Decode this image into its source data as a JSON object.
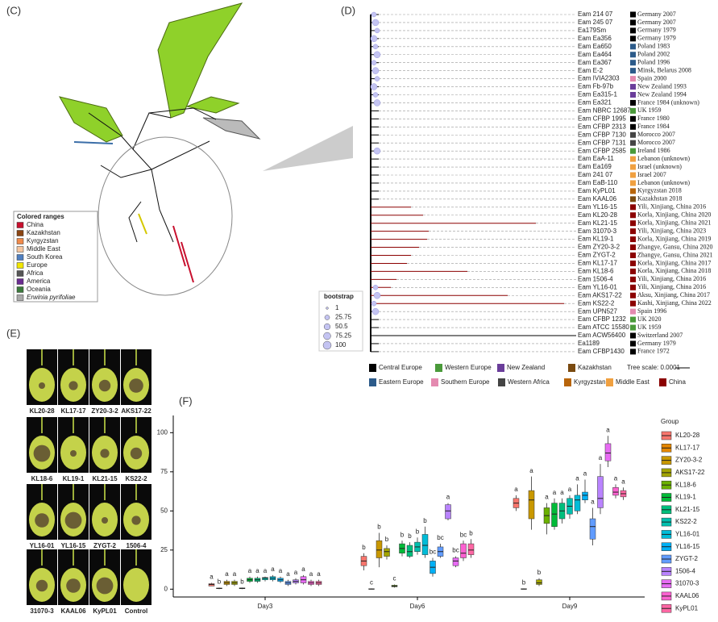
{
  "panels": {
    "c": "(C)",
    "d": "(D)",
    "e": "(E)",
    "f": "(F)"
  },
  "tree_c_legend": {
    "title": "Colored ranges",
    "items": [
      {
        "label": "China",
        "color": "#c8102e"
      },
      {
        "label": "Kazakhstan",
        "color": "#8b4513"
      },
      {
        "label": "Kyrgyzstan",
        "color": "#f08a4b"
      },
      {
        "label": "Middle East",
        "color": "#f5c6a0"
      },
      {
        "label": "South Korea",
        "color": "#4f7fc0"
      },
      {
        "label": "Europe",
        "color": "#f2e600"
      },
      {
        "label": "Africa",
        "color": "#555555"
      },
      {
        "label": "America",
        "color": "#6a2c91"
      },
      {
        "label": "Oceania",
        "color": "#3c7a3c"
      },
      {
        "label": "Erwinia pyrifoliae",
        "color": "#aaaaaa"
      }
    ]
  },
  "tree_d": {
    "taxa": [
      {
        "name": "Eam 214 07",
        "origin": "Germany 2007",
        "color": "#000000"
      },
      {
        "name": "Eam 245 07",
        "origin": "Germany 2007",
        "color": "#000000"
      },
      {
        "name": "Ea179Sm",
        "origin": "Germany 1979",
        "color": "#000000"
      },
      {
        "name": "Eam Ea356",
        "origin": "Germany 1979",
        "color": "#000000"
      },
      {
        "name": "Eam Ea650",
        "origin": "Poland 1983",
        "color": "#2c5b8a"
      },
      {
        "name": "Eam Ea464",
        "origin": "Poland 2002",
        "color": "#2c5b8a"
      },
      {
        "name": "Eam Ea367",
        "origin": "Poland 1996",
        "color": "#2c5b8a"
      },
      {
        "name": "Eam E-2",
        "origin": "Minsk, Belarus 2008",
        "color": "#2c5b8a"
      },
      {
        "name": "Eam IVIA2303",
        "origin": "Spain 2000",
        "color": "#e48ab0"
      },
      {
        "name": "Eam Fb-97b",
        "origin": "New Zealand 1993",
        "color": "#6a3d9a"
      },
      {
        "name": "Eam Ea315-1",
        "origin": "New Zealand 1994",
        "color": "#6a3d9a"
      },
      {
        "name": "Eam Ea321",
        "origin": "France 1984 (unknown)",
        "color": "#000000"
      },
      {
        "name": "Eam NBRC 12687",
        "origin": "UK 1959",
        "color": "#4a9a3a"
      },
      {
        "name": "Eam CFBP 1995",
        "origin": "France 1980",
        "color": "#000000"
      },
      {
        "name": "Eam CFBP 2313",
        "origin": "France 1984",
        "color": "#000000"
      },
      {
        "name": "Eam CFBP 7130",
        "origin": "Morocco 2007",
        "color": "#444444"
      },
      {
        "name": "Eam CFBP 7131",
        "origin": "Morocco 2007",
        "color": "#444444"
      },
      {
        "name": "Eam CFBP 2585",
        "origin": "Ireland 1986",
        "color": "#4a9a3a"
      },
      {
        "name": "Eam EaA-11",
        "origin": "Lebanon (unknown)",
        "color": "#f0a040"
      },
      {
        "name": "Eam Ea169",
        "origin": "Israel (unknown)",
        "color": "#f0a040"
      },
      {
        "name": "Eam 241 07",
        "origin": "Israel 2007",
        "color": "#f0a040"
      },
      {
        "name": "Eam EaB-110",
        "origin": "Lebanon (unknown)",
        "color": "#f0a040"
      },
      {
        "name": "Eam KyPL01",
        "origin": "Kyrgyzstan 2018",
        "color": "#b8650a"
      },
      {
        "name": "Eam KAAL06",
        "origin": "Kazakhstan 2018",
        "color": "#7a4a10"
      },
      {
        "name": "Eam YL16-15",
        "origin": "Yili, Xinjiang, China 2016",
        "color": "#8b0000"
      },
      {
        "name": "Eam KL20-28",
        "origin": "Korla, Xinjiang, China 2020",
        "color": "#8b0000"
      },
      {
        "name": "Eam KL21-15",
        "origin": "Korla, Xinjiang, China 2021",
        "color": "#8b0000"
      },
      {
        "name": "Eam 31070-3",
        "origin": "Yili, Xinjiang, China 2023",
        "color": "#8b0000"
      },
      {
        "name": "Eam KL19-1",
        "origin": "Korla, Xinjiang, China 2019",
        "color": "#8b0000"
      },
      {
        "name": "Eam ZY20-3-2",
        "origin": "Zhangye, Gansu, China 2020",
        "color": "#8b0000"
      },
      {
        "name": "Eam ZYGT-2",
        "origin": "Zhangye, Gansu, China 2021",
        "color": "#8b0000"
      },
      {
        "name": "Eam KL17-17",
        "origin": "Korla, Xinjiang, China 2017",
        "color": "#8b0000"
      },
      {
        "name": "Eam KL18-6",
        "origin": "Korla, Xinjiang, China 2018",
        "color": "#8b0000"
      },
      {
        "name": "Eam 1506-4",
        "origin": "Yili, Xinjiang, China 2016",
        "color": "#8b0000"
      },
      {
        "name": "Eam YL16-01",
        "origin": "Yili, Xinjiang, China 2016",
        "color": "#8b0000"
      },
      {
        "name": "Eam AKS17-22",
        "origin": "Aksu, Xinjiang, China 2017",
        "color": "#8b0000"
      },
      {
        "name": "Eam KS22-2",
        "origin": "Kashi, Xinjiang, China 2022",
        "color": "#8b0000"
      },
      {
        "name": "Eam UPN527",
        "origin": "Spain 1996",
        "color": "#e48ab0"
      },
      {
        "name": "Eam CFBP 1232",
        "origin": "UK 2020",
        "color": "#4a9a3a"
      },
      {
        "name": "Eam ATCC 15580",
        "origin": "UK 1959",
        "color": "#4a9a3a"
      },
      {
        "name": "Eam ACW56400",
        "origin": "Switzerland 2007",
        "color": "#000000"
      },
      {
        "name": "Ea1189",
        "origin": "Germany 1979",
        "color": "#000000"
      },
      {
        "name": "Eam CFBP1430",
        "origin": "France 1972",
        "color": "#000000"
      }
    ],
    "legend": [
      {
        "label": "Central Europe",
        "color": "#000000"
      },
      {
        "label": "Western Europe",
        "color": "#4a9a3a"
      },
      {
        "label": "New Zealand",
        "color": "#6a3d9a"
      },
      {
        "label": "Kazakhstan",
        "color": "#7a4a10"
      },
      {
        "label": "Eastern Europe",
        "color": "#2c5b8a"
      },
      {
        "label": "Southern Europe",
        "color": "#e48ab0"
      },
      {
        "label": "Western Africa",
        "color": "#444444"
      },
      {
        "label": "Kyrgyzstan",
        "color": "#b8650a"
      },
      {
        "label": "Middle East",
        "color": "#f0a040"
      },
      {
        "label": "China",
        "color": "#8b0000"
      }
    ],
    "bootstrap": {
      "title": "bootstrap",
      "values": [
        1,
        25.75,
        50.5,
        75.25,
        100
      ]
    },
    "scale": "Tree scale: 0.0001"
  },
  "photos": {
    "labels": [
      "KL20-28",
      "KL17-17",
      "ZY20-3-2",
      "AKS17-22",
      "KL18-6",
      "KL19-1",
      "KL21-15",
      "KS22-2",
      "YL16-01",
      "YL16-15",
      "ZYGT-2",
      "1506-4",
      "31070-3",
      "KAAL06",
      "KyPL01",
      "Control"
    ]
  },
  "chart_data": {
    "type": "box",
    "categories": [
      "Day3",
      "Day6",
      "Day9"
    ],
    "legend_title": "Group",
    "ylim": [
      -5,
      111
    ],
    "yticks": [
      0,
      25,
      50,
      75,
      100
    ],
    "series": [
      {
        "name": "KL20-28",
        "color": "#F8766D",
        "values": [
          3,
          18,
          55
        ],
        "q1": [
          2,
          15,
          52
        ],
        "q3": [
          3.5,
          21,
          58
        ],
        "low": [
          2,
          12,
          50
        ],
        "high": [
          4,
          23,
          60
        ],
        "letters": [
          "a",
          "b",
          "a"
        ]
      },
      {
        "name": "KL17-17",
        "color": "#E58700",
        "values": [
          0.5,
          0,
          0
        ],
        "q1": [
          0.3,
          0,
          0
        ],
        "q3": [
          0.7,
          0.3,
          0.3
        ],
        "low": [
          0,
          0,
          0
        ],
        "high": [
          1,
          0.5,
          0.5
        ],
        "letters": [
          "b",
          "c",
          "b"
        ]
      },
      {
        "name": "ZY20-3-2",
        "color": "#C99800",
        "values": [
          4,
          25,
          57
        ],
        "q1": [
          3,
          20,
          45
        ],
        "q3": [
          5,
          31,
          63
        ],
        "low": [
          2,
          14,
          38
        ],
        "high": [
          6,
          36,
          72
        ],
        "letters": [
          "a",
          "b",
          "a"
        ]
      },
      {
        "name": "AKS17-22",
        "color": "#A3A500",
        "values": [
          4,
          24,
          4
        ],
        "q1": [
          3,
          21,
          3
        ],
        "q3": [
          5,
          26,
          6
        ],
        "low": [
          2,
          19,
          2
        ],
        "high": [
          6,
          28,
          7
        ],
        "letters": [
          "a",
          "b",
          "b"
        ]
      },
      {
        "name": "KL18-6",
        "color": "#6BB100",
        "values": [
          0.5,
          2,
          47
        ],
        "q1": [
          0.3,
          1.5,
          42
        ],
        "q3": [
          0.8,
          2.5,
          52
        ],
        "low": [
          0,
          1,
          35
        ],
        "high": [
          1,
          3,
          55
        ],
        "letters": [
          "b",
          "c",
          "a"
        ]
      },
      {
        "name": "KL19-1",
        "color": "#00BA38",
        "values": [
          6,
          26,
          48
        ],
        "q1": [
          5,
          23,
          40
        ],
        "q3": [
          7,
          29,
          55
        ],
        "low": [
          4,
          21,
          38
        ],
        "high": [
          8,
          31,
          58
        ],
        "letters": [
          "a",
          "b",
          "a"
        ]
      },
      {
        "name": "KL21-15",
        "color": "#00BF7D",
        "values": [
          6,
          24,
          50
        ],
        "q1": [
          5,
          21,
          45
        ],
        "q3": [
          7,
          28,
          55
        ],
        "low": [
          4,
          20,
          42
        ],
        "high": [
          8,
          30,
          58
        ],
        "letters": [
          "a",
          "b",
          "a"
        ]
      },
      {
        "name": "KS22-2",
        "color": "#00C0AF",
        "values": [
          7,
          27,
          53
        ],
        "q1": [
          6,
          24,
          48
        ],
        "q3": [
          7.5,
          30,
          58
        ],
        "low": [
          5,
          22,
          45
        ],
        "high": [
          8,
          33,
          60
        ],
        "letters": [
          "a",
          "b",
          "a"
        ]
      },
      {
        "name": "YL16-01",
        "color": "#00BCD8",
        "values": [
          7,
          28,
          57
        ],
        "q1": [
          6,
          22,
          50
        ],
        "q3": [
          8,
          35,
          60
        ],
        "low": [
          5,
          20,
          48
        ],
        "high": [
          9,
          40,
          67
        ],
        "letters": [
          "a",
          "b",
          "a"
        ]
      },
      {
        "name": "YL16-15",
        "color": "#00B0F6",
        "values": [
          6,
          14,
          60
        ],
        "q1": [
          5,
          10,
          57
        ],
        "q3": [
          7,
          18,
          62
        ],
        "low": [
          4,
          8,
          55
        ],
        "high": [
          8,
          20,
          70
        ],
        "letters": [
          "a",
          "bc",
          "a"
        ]
      },
      {
        "name": "ZYGT-2",
        "color": "#619CFF",
        "values": [
          4,
          24,
          40
        ],
        "q1": [
          3,
          21,
          32
        ],
        "q3": [
          5,
          27,
          45
        ],
        "low": [
          2,
          20,
          28
        ],
        "high": [
          6,
          29,
          52
        ],
        "letters": [
          "a",
          "bc",
          "a"
        ]
      },
      {
        "name": "1506-4",
        "color": "#B983FF",
        "values": [
          5,
          50,
          58
        ],
        "q1": [
          4,
          45,
          52
        ],
        "q3": [
          6,
          54,
          72
        ],
        "low": [
          3,
          44,
          48
        ],
        "high": [
          7,
          55,
          80
        ],
        "letters": [
          "a",
          "a",
          "a"
        ]
      },
      {
        "name": "31070-3",
        "color": "#E76BF3",
        "values": [
          6,
          18,
          87
        ],
        "q1": [
          4,
          15,
          82
        ],
        "q3": [
          8,
          20,
          93
        ],
        "low": [
          3,
          14,
          78
        ],
        "high": [
          9,
          21,
          98
        ],
        "letters": [
          "a",
          "bc",
          "a"
        ]
      },
      {
        "name": "KAAL06",
        "color": "#FD61D1",
        "values": [
          4,
          23,
          62
        ],
        "q1": [
          3,
          20,
          60
        ],
        "q3": [
          5,
          29,
          65
        ],
        "low": [
          2,
          18,
          58
        ],
        "high": [
          6,
          31,
          67
        ],
        "letters": [
          "a",
          "bc",
          "a"
        ]
      },
      {
        "name": "KyPL01",
        "color": "#FF67A4",
        "values": [
          4,
          25,
          61
        ],
        "q1": [
          3,
          22,
          59
        ],
        "q3": [
          5,
          29,
          63
        ],
        "low": [
          2,
          20,
          57
        ],
        "high": [
          6,
          32,
          65
        ],
        "letters": [
          "a",
          "b",
          "a"
        ]
      }
    ]
  }
}
